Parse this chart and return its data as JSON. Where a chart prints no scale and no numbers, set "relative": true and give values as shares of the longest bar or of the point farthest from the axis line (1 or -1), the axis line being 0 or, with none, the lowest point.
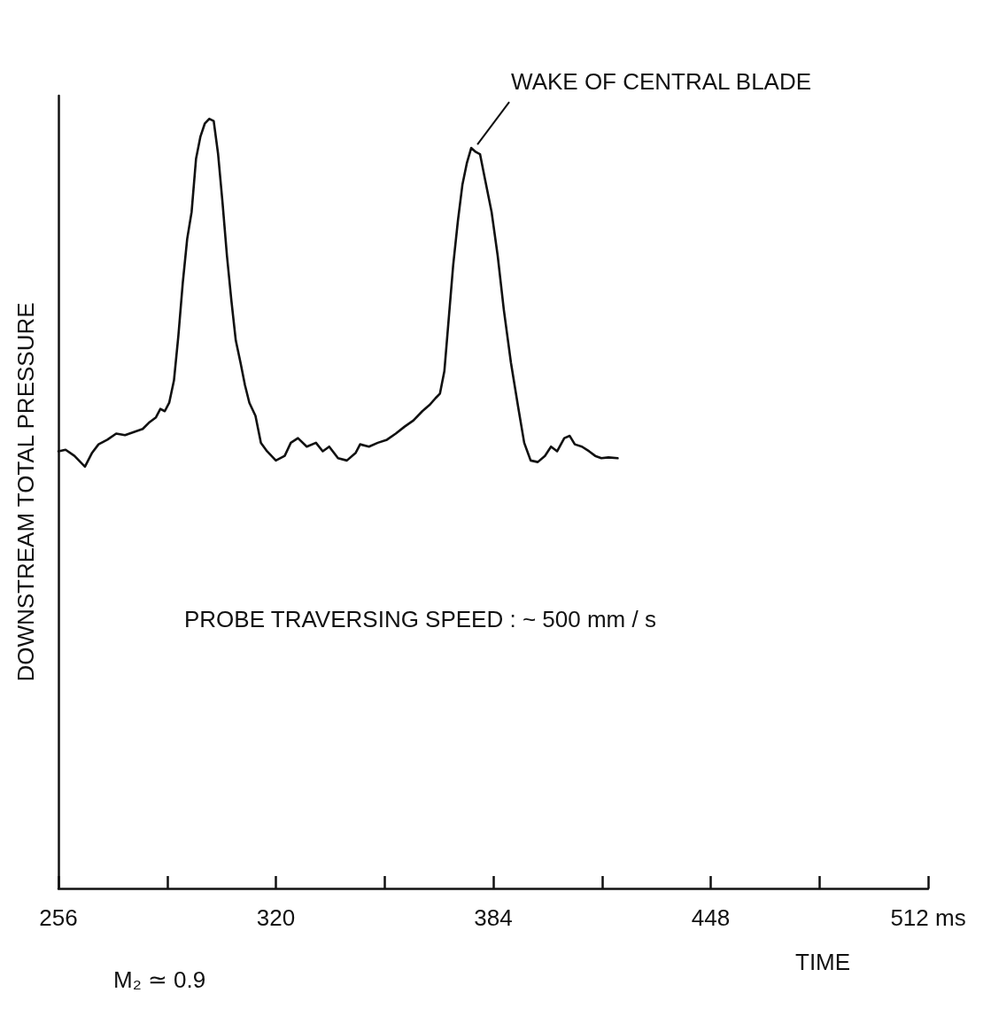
{
  "chart_data": {
    "type": "line",
    "relative": true,
    "xlabel": "TIME",
    "ylabel": "DOWNSTREAM TOTAL PRESSURE",
    "xlim": [
      256,
      512
    ],
    "xticks": [
      256,
      {
        "value": 288,
        "label": null
      },
      320,
      {
        "value": 352,
        "label": null
      },
      384,
      {
        "value": 416,
        "label": null
      },
      448,
      {
        "value": 480,
        "label": null
      },
      {
        "value": 512,
        "label": "512 ms"
      }
    ],
    "x": [
      256.0,
      258.1,
      260.7,
      263.8,
      265.9,
      267.8,
      270.4,
      273.0,
      275.6,
      278.2,
      280.8,
      282.6,
      284.7,
      286.0,
      287.3,
      288.6,
      290.0,
      291.3,
      292.6,
      293.9,
      295.2,
      296.5,
      297.8,
      299.1,
      300.4,
      301.7,
      303.0,
      304.3,
      305.6,
      306.9,
      308.2,
      309.6,
      310.9,
      312.2,
      314.0,
      315.6,
      317.4,
      320.0,
      322.6,
      324.4,
      326.5,
      329.1,
      331.8,
      333.8,
      335.7,
      338.3,
      340.9,
      343.5,
      344.8,
      347.4,
      350.0,
      352.7,
      355.3,
      357.9,
      360.5,
      363.1,
      365.2,
      367.0,
      368.3,
      369.6,
      370.9,
      372.2,
      373.6,
      374.9,
      376.2,
      377.5,
      378.8,
      380.1,
      381.4,
      383.5,
      385.3,
      387.1,
      389.2,
      391.3,
      393.1,
      395.0,
      397.1,
      399.2,
      401.0,
      402.8,
      404.9,
      406.5,
      408.0,
      410.1,
      412.2,
      414.0,
      415.8,
      417.9,
      420.6
    ],
    "series": [
      {
        "color": "#111111",
        "values": [
          0.568,
          0.57,
          0.562,
          0.548,
          0.566,
          0.577,
          0.583,
          0.591,
          0.589,
          0.593,
          0.597,
          0.605,
          0.612,
          0.623,
          0.62,
          0.631,
          0.66,
          0.718,
          0.787,
          0.844,
          0.879,
          0.948,
          0.977,
          0.994,
          1,
          0.997,
          0.954,
          0.891,
          0.822,
          0.764,
          0.712,
          0.683,
          0.654,
          0.631,
          0.614,
          0.579,
          0.568,
          0.556,
          0.562,
          0.579,
          0.585,
          0.574,
          0.579,
          0.568,
          0.574,
          0.559,
          0.556,
          0.566,
          0.577,
          0.574,
          0.579,
          0.583,
          0.591,
          0.6,
          0.608,
          0.62,
          0.628,
          0.637,
          0.643,
          0.672,
          0.741,
          0.81,
          0.868,
          0.914,
          0.942,
          0.962,
          0.957,
          0.954,
          0.925,
          0.879,
          0.822,
          0.752,
          0.683,
          0.626,
          0.579,
          0.556,
          0.554,
          0.562,
          0.574,
          0.568,
          0.585,
          0.588,
          0.577,
          0.574,
          0.568,
          0.562,
          0.559,
          0.56,
          0.559
        ]
      }
    ],
    "marker": "none",
    "line_style": "solid",
    "grid": false,
    "annotations": [
      {
        "text": "WAKE OF CENTRAL BLADE",
        "x": 378.8,
        "y": 0.962
      },
      "PROBE TRAVERSING SPEED : ~ 500 mm / s",
      "M₂ ≃ 0.9"
    ]
  }
}
